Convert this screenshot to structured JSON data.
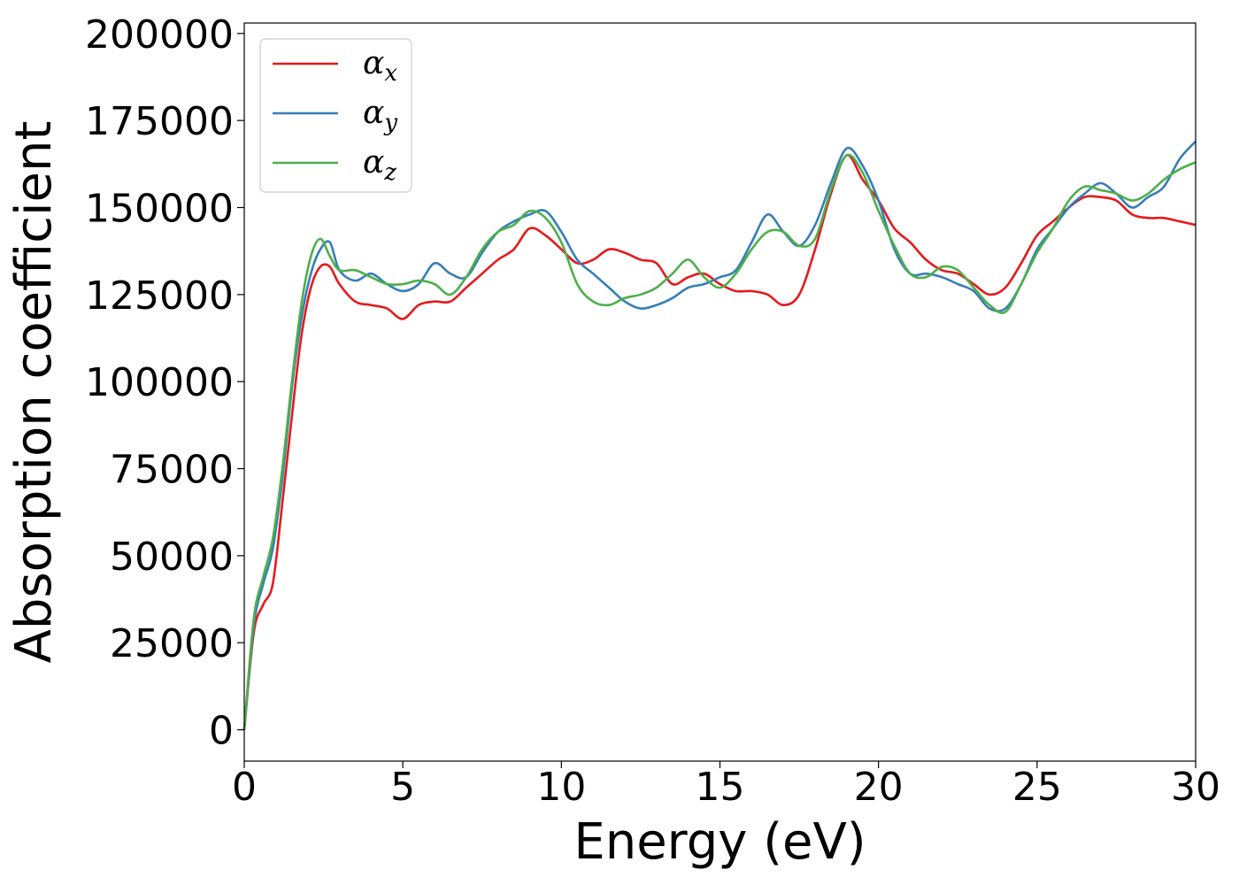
{
  "chart_data": {
    "type": "line",
    "title": "",
    "xlabel": "Energy (eV)",
    "ylabel": "Absorption coefficient",
    "xlim": [
      0,
      30
    ],
    "ylim": [
      -9000,
      203000
    ],
    "xticks": [
      0,
      5,
      10,
      15,
      20,
      25,
      30
    ],
    "yticks": [
      0,
      25000,
      50000,
      75000,
      100000,
      125000,
      150000,
      175000,
      200000
    ],
    "grid": false,
    "legend_position": "top-left",
    "series": [
      {
        "name": "α",
        "subscript": "x",
        "color": "#e41a1c",
        "x": [
          0,
          0.3,
          0.6,
          0.9,
          1.2,
          1.5,
          1.8,
          2.1,
          2.4,
          2.7,
          3.0,
          3.5,
          4.0,
          4.5,
          5.0,
          5.5,
          6.0,
          6.5,
          7.0,
          7.5,
          8.0,
          8.5,
          9.0,
          9.5,
          10.0,
          10.5,
          11.0,
          11.5,
          12.0,
          12.5,
          13.0,
          13.5,
          14.0,
          14.5,
          15.0,
          15.5,
          16.0,
          16.5,
          17.0,
          17.5,
          18.0,
          18.5,
          19.0,
          19.5,
          20.0,
          20.5,
          21.0,
          21.5,
          22.0,
          22.5,
          23.0,
          23.5,
          24.0,
          24.5,
          25.0,
          25.5,
          26.0,
          26.5,
          27.0,
          27.5,
          28.0,
          28.5,
          29.0,
          29.5,
          30.0
        ],
        "y": [
          0,
          28000,
          36000,
          42000,
          65000,
          90000,
          113000,
          127000,
          133000,
          133000,
          128000,
          123000,
          122000,
          121000,
          118000,
          122000,
          123000,
          123000,
          127000,
          131000,
          135000,
          138000,
          144000,
          142000,
          138000,
          134000,
          135000,
          138000,
          137000,
          135000,
          134000,
          128000,
          130000,
          131000,
          128000,
          126000,
          126000,
          125000,
          122000,
          125000,
          138000,
          154000,
          165000,
          158000,
          152000,
          144000,
          140000,
          135000,
          132000,
          131000,
          128000,
          125000,
          127000,
          134000,
          142000,
          146000,
          150000,
          153000,
          153000,
          152000,
          148000,
          147000,
          147000,
          146000,
          145000
        ]
      },
      {
        "name": "α",
        "subscript": "y",
        "color": "#377eb8",
        "x": [
          0,
          0.3,
          0.6,
          0.9,
          1.2,
          1.5,
          1.8,
          2.1,
          2.4,
          2.7,
          3.0,
          3.5,
          4.0,
          4.5,
          5.0,
          5.5,
          6.0,
          6.5,
          7.0,
          7.5,
          8.0,
          8.5,
          9.0,
          9.5,
          10.0,
          10.5,
          11.0,
          11.5,
          12.0,
          12.5,
          13.0,
          13.5,
          14.0,
          14.5,
          15.0,
          15.5,
          16.0,
          16.5,
          17.0,
          17.5,
          18.0,
          18.5,
          19.0,
          19.5,
          20.0,
          20.5,
          21.0,
          21.5,
          22.0,
          22.5,
          23.0,
          23.5,
          24.0,
          24.5,
          25.0,
          25.5,
          26.0,
          26.5,
          27.0,
          27.5,
          28.0,
          28.5,
          29.0,
          29.5,
          30.0
        ],
        "y": [
          0,
          30000,
          42000,
          52000,
          72000,
          98000,
          118000,
          131000,
          138000,
          140000,
          132000,
          129000,
          131000,
          128000,
          126000,
          128000,
          134000,
          131000,
          130000,
          137000,
          143000,
          146000,
          148000,
          149000,
          143000,
          135000,
          131000,
          127000,
          123000,
          121000,
          122000,
          124000,
          127000,
          128000,
          130000,
          132000,
          140000,
          148000,
          143000,
          139000,
          145000,
          157000,
          167000,
          162000,
          152000,
          138000,
          131000,
          131000,
          130000,
          128000,
          126000,
          121000,
          121000,
          128000,
          138000,
          144000,
          150000,
          154000,
          157000,
          154000,
          150000,
          153000,
          156000,
          164000,
          169000
        ]
      },
      {
        "name": "α",
        "subscript": "z",
        "color": "#4daf4a",
        "x": [
          0,
          0.3,
          0.6,
          0.9,
          1.2,
          1.5,
          1.8,
          2.1,
          2.4,
          2.7,
          3.0,
          3.5,
          4.0,
          4.5,
          5.0,
          5.5,
          6.0,
          6.5,
          7.0,
          7.5,
          8.0,
          8.5,
          9.0,
          9.5,
          10.0,
          10.5,
          11.0,
          11.5,
          12.0,
          12.5,
          13.0,
          13.5,
          14.0,
          14.5,
          15.0,
          15.5,
          16.0,
          16.5,
          17.0,
          17.5,
          18.0,
          18.5,
          19.0,
          19.5,
          20.0,
          20.5,
          21.0,
          21.5,
          22.0,
          22.5,
          23.0,
          23.5,
          24.0,
          24.5,
          25.0,
          25.5,
          26.0,
          26.5,
          27.0,
          27.5,
          28.0,
          28.5,
          29.0,
          29.5,
          30.0
        ],
        "y": [
          0,
          32000,
          44000,
          55000,
          75000,
          100000,
          122000,
          136000,
          141000,
          136000,
          132000,
          132000,
          130000,
          128000,
          128000,
          129000,
          128000,
          125000,
          130000,
          138000,
          143000,
          145000,
          149000,
          147000,
          140000,
          128000,
          123000,
          122000,
          124000,
          125000,
          127000,
          131000,
          135000,
          130000,
          127000,
          131000,
          138000,
          143000,
          143000,
          139000,
          141000,
          155000,
          165000,
          160000,
          149000,
          139000,
          131000,
          130000,
          133000,
          132000,
          127000,
          122000,
          120000,
          128000,
          137000,
          144000,
          152000,
          156000,
          155000,
          154000,
          152000,
          154000,
          158000,
          161000,
          163000
        ]
      }
    ]
  }
}
